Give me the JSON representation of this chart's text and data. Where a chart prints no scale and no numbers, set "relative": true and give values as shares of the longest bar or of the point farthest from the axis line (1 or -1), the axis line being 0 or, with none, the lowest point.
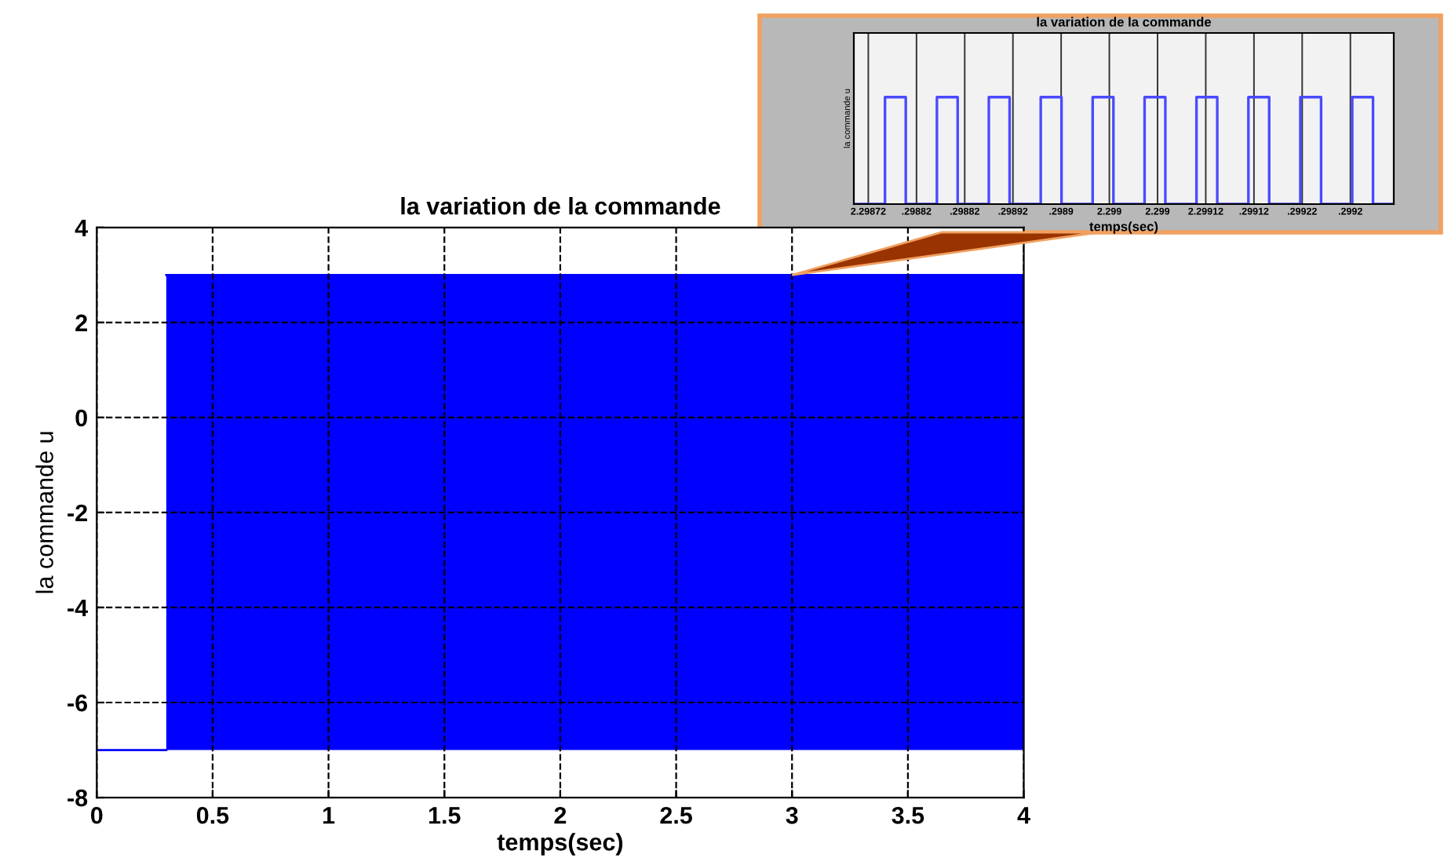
{
  "chart_data": [
    {
      "type": "line",
      "title": "la variation de la commande",
      "xlabel": "temps(sec)",
      "ylabel": "la commande u",
      "xlim": [
        0,
        4
      ],
      "ylim": [
        -8,
        4
      ],
      "xticks": [
        0,
        0.5,
        1,
        1.5,
        2,
        2.5,
        3,
        3.5,
        4
      ],
      "yticks": [
        -8,
        -6,
        -4,
        -2,
        0,
        2,
        4
      ],
      "grid": true,
      "series": [
        {
          "color": "#0000ff",
          "x": [
            0,
            0.3
          ],
          "values": [
            -7,
            -7
          ]
        },
        {
          "color": "#0000ff",
          "x": [
            0.3,
            4
          ],
          "values": [
            3,
            3
          ],
          "lower": [
            -7,
            -7
          ],
          "upper": [
            3,
            3
          ]
        }
      ]
    },
    {
      "type": "step",
      "title": "la variation de la commande",
      "xlabel": "temps(sec)",
      "ylabel": "la commande u",
      "relative": true,
      "grid": "x",
      "annotations": [
        "2.29872",
        ".29882",
        ".29882",
        ".29892",
        ".2989",
        "2.299",
        "2.299",
        "2.29912",
        ".29912",
        ".29922",
        ".2992"
      ],
      "categories": [
        null,
        null,
        null,
        null,
        null,
        null,
        null,
        null,
        null,
        null,
        null,
        null,
        null,
        null,
        null,
        null,
        null,
        null,
        null,
        null,
        null,
        null,
        null,
        null,
        null,
        null,
        null,
        null,
        null,
        null,
        null,
        null,
        null,
        null,
        null,
        null,
        null,
        null,
        null,
        null,
        null,
        null,
        null,
        null,
        null,
        null,
        null,
        null,
        null,
        null,
        null,
        null,
        null
      ],
      "series": [
        {
          "color": "#4a4aff",
          "values": [
            0,
            0,
            0,
            1,
            1,
            0,
            0,
            0,
            1,
            1,
            0,
            0,
            0,
            1,
            1,
            0,
            0,
            0,
            1,
            1,
            0,
            0,
            0,
            1,
            1,
            0,
            0,
            0,
            1,
            1,
            0,
            0,
            0,
            1,
            1,
            0,
            0,
            0,
            1,
            1,
            0,
            0,
            0,
            1,
            1,
            0,
            0,
            0,
            1,
            1,
            0,
            0,
            0
          ]
        }
      ]
    }
  ]
}
